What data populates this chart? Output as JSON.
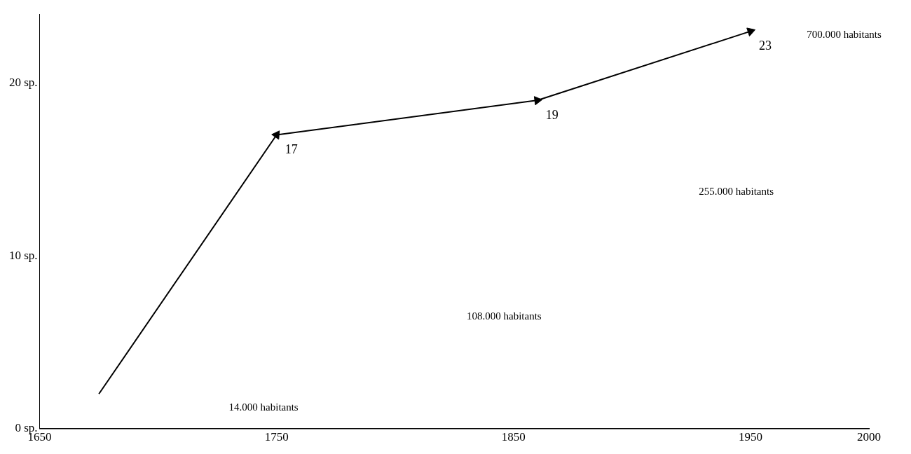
{
  "chart_data": {
    "type": "line",
    "x": [
      1675,
      1750,
      1860,
      1950
    ],
    "values": [
      2,
      17,
      19,
      23
    ],
    "value_labels": [
      null,
      "17",
      "19",
      "23"
    ],
    "color": "#000000",
    "marker": "triangle",
    "xlim": [
      1650,
      2000
    ],
    "xticks": [
      1650,
      1750,
      1850,
      1950,
      2000
    ],
    "ylim": [
      0,
      24
    ],
    "yticks": [
      {
        "value": 0,
        "label": "0 sp."
      },
      {
        "value": 10,
        "label": "10 sp."
      },
      {
        "value": 20,
        "label": "20 sp."
      }
    ],
    "grid": false,
    "legend": false,
    "annotations": [
      "14.000 habitants",
      "108.000 habitants",
      "255.000 habitants",
      "700.000 habitants"
    ]
  }
}
